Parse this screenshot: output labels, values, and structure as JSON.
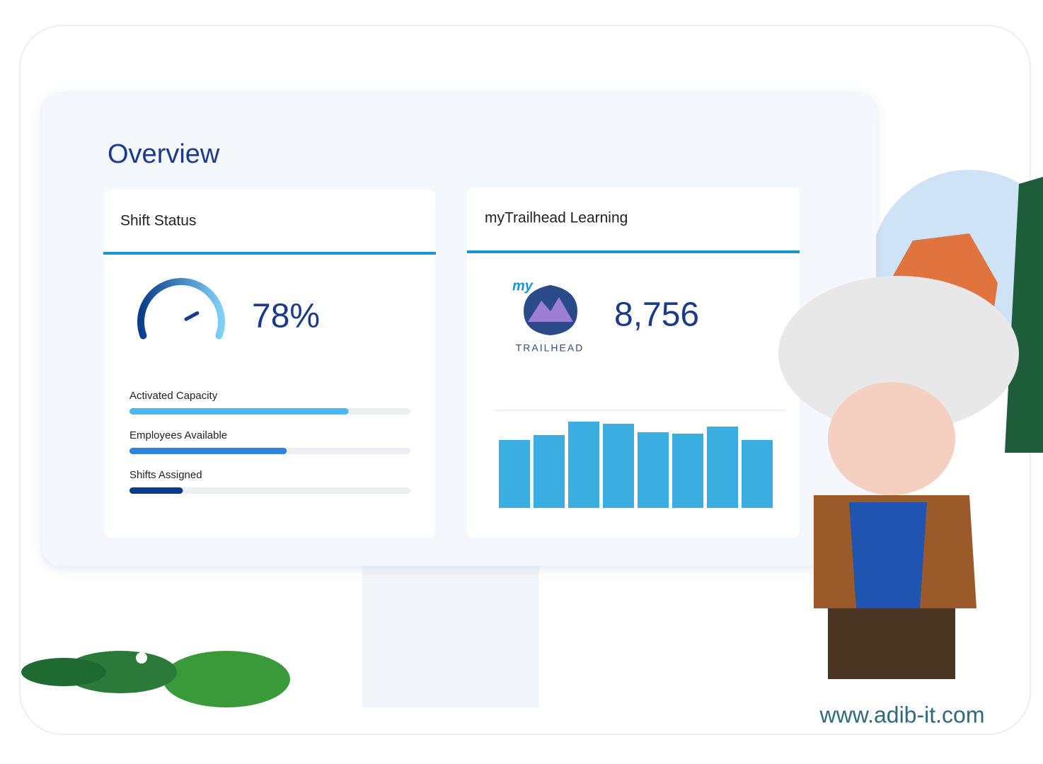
{
  "header": {
    "title": "Overview"
  },
  "shift_status": {
    "title": "Shift Status",
    "gauge_value": 78,
    "gauge_label": "78%",
    "progress": [
      {
        "label": "Activated Capacity",
        "value": 78,
        "color": "#4db8f0"
      },
      {
        "label": "Employees Available",
        "value": 56,
        "color": "#2a86e0"
      },
      {
        "label": "Shifts Assigned",
        "value": 19,
        "color": "#0b3c8c"
      }
    ]
  },
  "learning": {
    "title": "myTrailhead Learning",
    "logo_prefix": "my",
    "logo_text": "TRAILHEAD",
    "total": "8,756",
    "bars": [
      96,
      103,
      122,
      119,
      107,
      105,
      115,
      96
    ],
    "bar_color": "#3aaee0"
  },
  "footer": {
    "url": "www.adib-it.com"
  }
}
